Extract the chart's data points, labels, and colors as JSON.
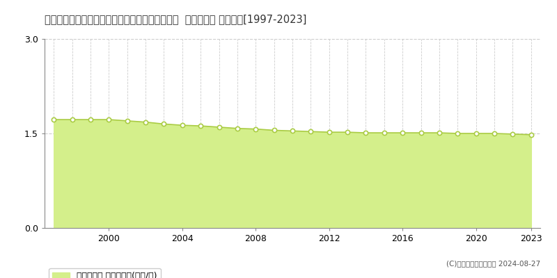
{
  "title": "福島県東白川郡鯣川村大字渡瀬字中野町３１番２  基準地価格 地価推移[1997-2023]",
  "years": [
    1997,
    1998,
    1999,
    2000,
    2001,
    2002,
    2003,
    2004,
    2005,
    2006,
    2007,
    2008,
    2009,
    2010,
    2011,
    2012,
    2013,
    2014,
    2015,
    2016,
    2017,
    2018,
    2019,
    2020,
    2021,
    2022,
    2023
  ],
  "values": [
    1.72,
    1.72,
    1.72,
    1.72,
    1.7,
    1.68,
    1.65,
    1.63,
    1.62,
    1.6,
    1.58,
    1.57,
    1.55,
    1.54,
    1.53,
    1.52,
    1.52,
    1.51,
    1.51,
    1.51,
    1.51,
    1.51,
    1.5,
    1.5,
    1.5,
    1.49,
    1.48
  ],
  "fill_color": "#d4ef8b",
  "line_color": "#aacc44",
  "marker_color": "#ffffff",
  "marker_edge_color": "#aacc44",
  "grid_color": "#cccccc",
  "ylim": [
    0,
    3.0
  ],
  "yticks": [
    0,
    1.5,
    3
  ],
  "xtick_labels": [
    2000,
    2004,
    2008,
    2012,
    2016,
    2020,
    2023
  ],
  "legend_label": "基準地価格 平均坤単価(万円/坤)",
  "copyright": "(C)土地価格ドットコム 2024-08-27",
  "bg_color": "#ffffff",
  "title_fontsize": 10.5,
  "legend_fontsize": 9,
  "axis_fontsize": 9
}
